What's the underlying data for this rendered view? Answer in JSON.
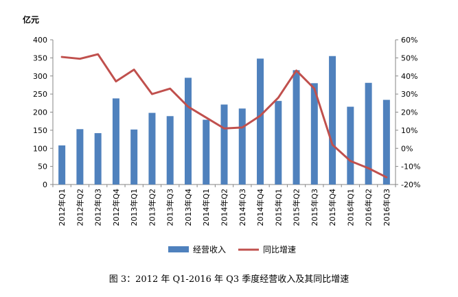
{
  "chart_data": {
    "type": "bar+line",
    "unit_label": "亿元",
    "categories": [
      "2012年Q1",
      "2012年Q2",
      "2012年Q3",
      "2012年Q4",
      "2013年Q1",
      "2013年Q2",
      "2013年Q3",
      "2013年Q4",
      "2014年Q1",
      "2014年Q2",
      "2014年Q3",
      "2014年Q4",
      "2015年Q1",
      "2015年Q2",
      "2015年Q3",
      "2015年Q4",
      "2016年Q1",
      "2016年Q2",
      "2016年Q3"
    ],
    "series": [
      {
        "name": "经营收入",
        "type": "bar",
        "axis": "left",
        "color": "#4F81BD",
        "values": [
          108,
          153,
          142,
          238,
          152,
          198,
          189,
          295,
          179,
          221,
          210,
          348,
          231,
          316,
          280,
          355,
          215,
          281,
          234
        ]
      },
      {
        "name": "同比增速",
        "type": "line",
        "axis": "right",
        "color": "#C0504D",
        "values": [
          50.5,
          49.5,
          52,
          37,
          43.5,
          30,
          33,
          23,
          17,
          11,
          11.5,
          18,
          28,
          43,
          33,
          2,
          -7,
          -11,
          -16
        ]
      }
    ],
    "y_left": {
      "min": 0,
      "max": 400,
      "step": 50,
      "ticks": [
        "0",
        "50",
        "100",
        "150",
        "200",
        "250",
        "300",
        "350",
        "400"
      ]
    },
    "y_right": {
      "min": -20,
      "max": 60,
      "step": 10,
      "ticks": [
        "-20%",
        "-10%",
        "0%",
        "10%",
        "20%",
        "30%",
        "40%",
        "50%",
        "60%"
      ]
    },
    "grid": false,
    "legend_position": "bottom",
    "caption": "图 3：2012 年 Q1-2016 年 Q3 季度经营收入及其同比增速"
  }
}
